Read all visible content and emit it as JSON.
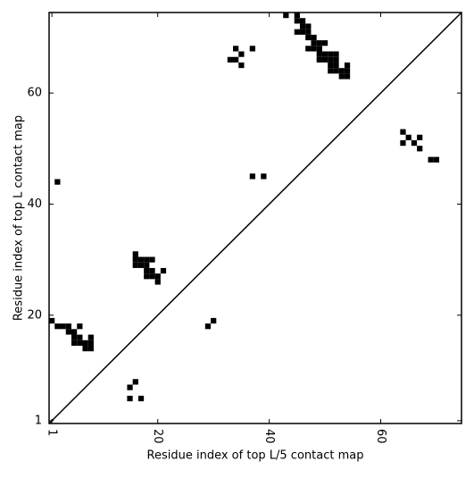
{
  "chart_data": {
    "type": "scatter",
    "xlabel": "Residue index of top L/5 contact map",
    "ylabel": "Residue index of top L contact map",
    "xlim": [
      0.5,
      74.5
    ],
    "ylim": [
      0.5,
      74.5
    ],
    "xticks": [
      1,
      20,
      40,
      60
    ],
    "yticks": [
      1,
      20,
      40,
      60
    ],
    "color": "#000000",
    "x": [
      1,
      2,
      3,
      4,
      6,
      4,
      5,
      5,
      6,
      8,
      5,
      6,
      7,
      8,
      7,
      8,
      2,
      15,
      16,
      15,
      17,
      16,
      16,
      17,
      18,
      19,
      16,
      17,
      18,
      18,
      19,
      21,
      18,
      19,
      20,
      20,
      29,
      30,
      37,
      39,
      34,
      37,
      35,
      33,
      34,
      35,
      43,
      45,
      45,
      46,
      46,
      47,
      45,
      46,
      47,
      47,
      48,
      48,
      49,
      50,
      47,
      48,
      49,
      49,
      50,
      51,
      52,
      49,
      50,
      51,
      52,
      51,
      52,
      54,
      51,
      52,
      53,
      54,
      53,
      54,
      64,
      65,
      67,
      64,
      66,
      67,
      69,
      70
    ],
    "y": [
      19,
      18,
      18,
      18,
      18,
      17,
      17,
      16,
      16,
      16,
      15,
      15,
      15,
      15,
      14,
      14,
      44,
      7,
      8,
      5,
      5,
      31,
      30,
      30,
      30,
      30,
      29,
      29,
      29,
      28,
      28,
      28,
      27,
      27,
      27,
      26,
      18,
      19,
      45,
      45,
      68,
      68,
      67,
      66,
      66,
      65,
      74,
      74,
      73,
      73,
      72,
      72,
      71,
      71,
      71,
      70,
      70,
      69,
      69,
      69,
      68,
      68,
      68,
      67,
      67,
      67,
      67,
      66,
      66,
      66,
      66,
      65,
      65,
      65,
      64,
      64,
      64,
      64,
      63,
      63,
      53,
      52,
      52,
      51,
      51,
      50,
      48,
      48
    ]
  }
}
